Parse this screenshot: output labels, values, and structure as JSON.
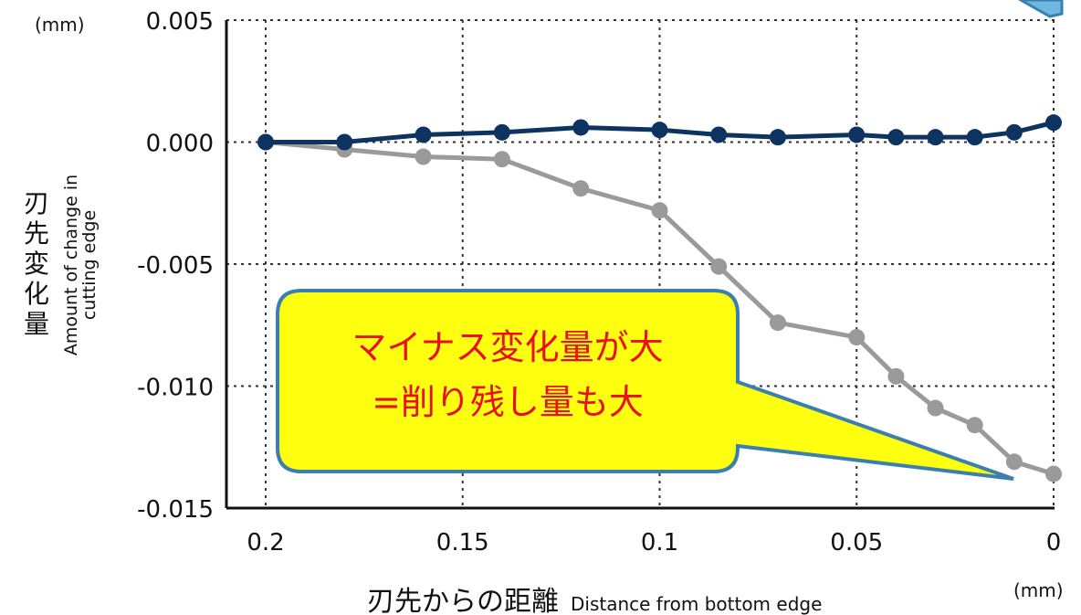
{
  "chart_data": {
    "type": "line",
    "x": [
      0.2,
      0.18,
      0.16,
      0.14,
      0.12,
      0.1,
      0.085,
      0.07,
      0.05,
      0.04,
      0.03,
      0.02,
      0.01,
      0
    ],
    "x_ticks": [
      0.2,
      0.15,
      0.1,
      0.05,
      0
    ],
    "x_tick_labels": [
      "0.2",
      "0.15",
      "0.1",
      "0.05",
      "0"
    ],
    "x_reversed": true,
    "xlim": [
      0,
      0.2
    ],
    "y_ticks": [
      0.005,
      0.0,
      -0.005,
      -0.01,
      -0.015
    ],
    "y_tick_labels": [
      "0.005",
      "0.000",
      "-0.005",
      "-0.010",
      "-0.015"
    ],
    "ylim": [
      -0.015,
      0.005
    ],
    "grid": "dotted",
    "series": [
      {
        "color": "#0d3461",
        "values": [
          0.0,
          0.0,
          0.0003,
          0.0004,
          0.0006,
          0.0005,
          0.0003,
          0.0002,
          0.0003,
          0.0002,
          0.0002,
          0.0002,
          0.0004,
          0.0008
        ]
      },
      {
        "color": "#9a9a9a",
        "values": [
          0.0,
          -0.0003,
          -0.0006,
          -0.0007,
          -0.0019,
          -0.0028,
          -0.0051,
          -0.0074,
          -0.008,
          -0.0096,
          -0.0109,
          -0.0116,
          -0.0131,
          -0.0136
        ]
      }
    ],
    "y_unit": "(mm)",
    "x_unit": "(mm)",
    "xlabel_ja": "刃先からの距離",
    "xlabel_en": "Distance from bottom edge",
    "ylabel_ja": "刃先変化量",
    "ylabel_en_line1": "Amount of change in",
    "ylabel_en_line2": "cutting edge"
  },
  "callout": {
    "line1": "マイナス変化量が大",
    "line2": "=削り残し量も大",
    "fill": "#ffff10",
    "border": "#3a7fb0"
  }
}
